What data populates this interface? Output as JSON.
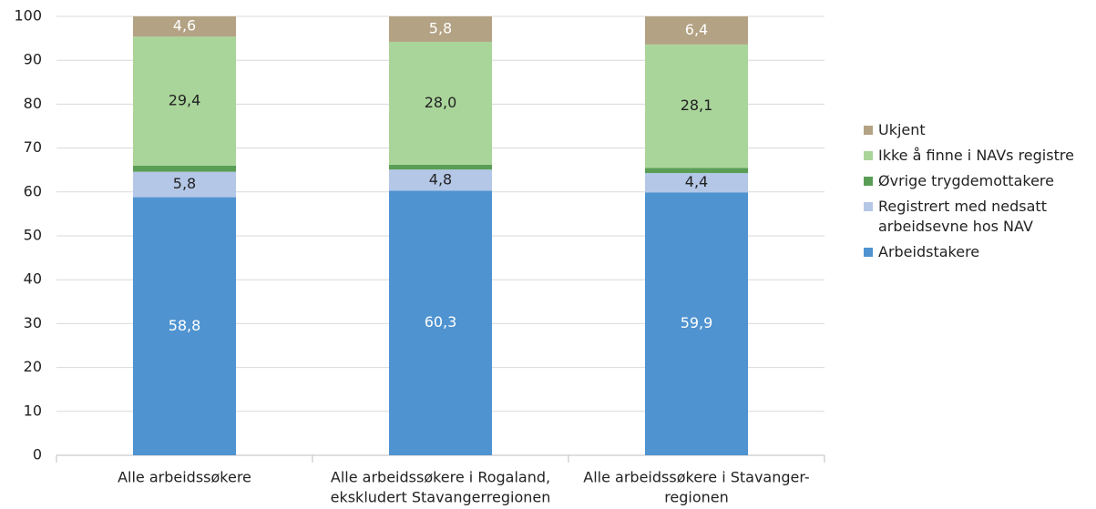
{
  "chart_data": {
    "type": "stacked_bar",
    "categories": [
      [
        "Alle arbeidssøkere"
      ],
      [
        "Alle arbeidssøkere i Rogaland,",
        "ekskludert Stavangerregionen"
      ],
      [
        "Alle arbeidssøkere i Stavanger-",
        "regionen"
      ]
    ],
    "series": [
      {
        "name": "Arbeidstakere",
        "color": "#4f93d0",
        "label_color": "#ffffff",
        "values": [
          58.8,
          60.3,
          59.9
        ],
        "value_labels": [
          "58,8",
          "60,3",
          "59,9"
        ]
      },
      {
        "name": "Registrert med nedsatt arbeidsevne hos NAV",
        "color": "#b4c7e7",
        "label_color": "#222222",
        "values": [
          5.8,
          4.8,
          4.4
        ],
        "value_labels": [
          "5,8",
          "4,8",
          "4,4"
        ]
      },
      {
        "name": "Øvrige trygdemottakere",
        "color": "#5a9e56",
        "values": [
          1.4,
          1.1,
          1.2
        ]
      },
      {
        "name": "Ikke å finne i NAVs registre",
        "color": "#a9d59a",
        "label_color": "#222222",
        "values": [
          29.4,
          28.0,
          28.1
        ],
        "value_labels": [
          "29,4",
          "28,0",
          "28,1"
        ]
      },
      {
        "name": "Ukjent",
        "color": "#b3a283",
        "label_color": "#ffffff",
        "values": [
          4.6,
          5.8,
          6.4
        ],
        "value_labels": [
          "4,6",
          "5,8",
          "6,4"
        ]
      }
    ],
    "ylim": [
      0,
      100
    ],
    "yticks": [
      0,
      10,
      20,
      30,
      40,
      50,
      60,
      70,
      80,
      90,
      100
    ],
    "grid": true
  }
}
